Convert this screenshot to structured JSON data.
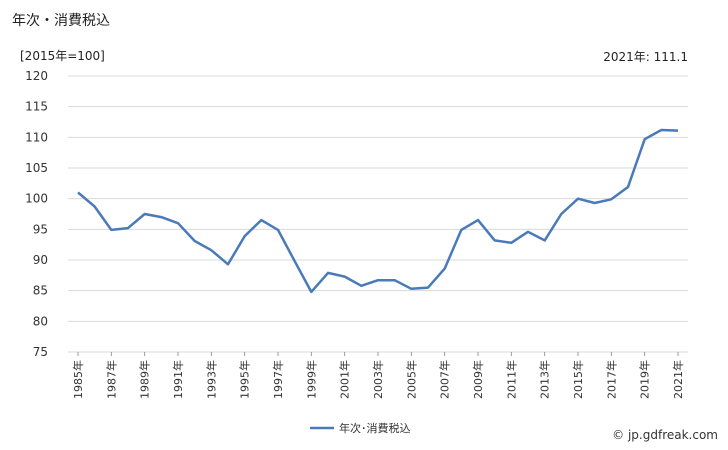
{
  "header": {
    "title": "年次・消費税込",
    "unit": "[2015年=100]",
    "latest": "2021年: 111.1"
  },
  "footer": {
    "credit": "© jp.gdfreak.com"
  },
  "colors": {
    "series": "#4a7ab8",
    "grid": "#d9d9d9"
  },
  "chart_data": {
    "type": "line",
    "title": "年次・消費税込",
    "ylabel": "[2015年=100]",
    "xlabel": "",
    "ylim": [
      75,
      120
    ],
    "yticks": [
      75,
      80,
      85,
      90,
      95,
      100,
      105,
      110,
      115,
      120
    ],
    "grid": true,
    "legend": "bottom-center",
    "x": [
      "1985年",
      "1986年",
      "1987年",
      "1988年",
      "1989年",
      "1990年",
      "1991年",
      "1992年",
      "1993年",
      "1994年",
      "1995年",
      "1996年",
      "1997年",
      "1998年",
      "1999年",
      "2000年",
      "2001年",
      "2002年",
      "2003年",
      "2004年",
      "2005年",
      "2006年",
      "2007年",
      "2008年",
      "2009年",
      "2010年",
      "2011年",
      "2012年",
      "2013年",
      "2014年",
      "2015年",
      "2016年",
      "2017年",
      "2018年",
      "2019年",
      "2020年",
      "2021年"
    ],
    "xticklabels": [
      "1985年",
      "1987年",
      "1989年",
      "1991年",
      "1993年",
      "1995年",
      "1997年",
      "1999年",
      "2001年",
      "2003年",
      "2005年",
      "2007年",
      "2009年",
      "2011年",
      "2013年",
      "2015年",
      "2017年",
      "2019年",
      "2021年"
    ],
    "series": [
      {
        "name": "年次･消費税込",
        "values": [
          101.0,
          98.7,
          94.9,
          95.2,
          97.5,
          97.0,
          96.0,
          93.1,
          91.6,
          89.3,
          93.9,
          96.5,
          94.9,
          89.8,
          84.8,
          87.9,
          87.3,
          85.8,
          86.7,
          86.7,
          85.3,
          85.5,
          88.6,
          94.9,
          96.5,
          93.2,
          92.8,
          94.6,
          93.2,
          97.5,
          100.0,
          99.3,
          99.9,
          101.9,
          109.7,
          111.2,
          111.1
        ]
      }
    ]
  }
}
